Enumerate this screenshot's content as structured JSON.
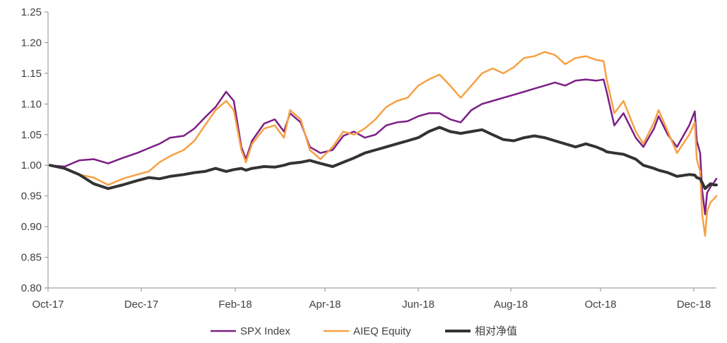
{
  "chart_data": {
    "type": "line",
    "title": "",
    "xlabel": "",
    "ylabel": "",
    "ylim": [
      0.8,
      1.25
    ],
    "y_ticks": [
      "0.80",
      "0.85",
      "0.90",
      "0.95",
      "1.00",
      "1.05",
      "1.10",
      "1.15",
      "1.20",
      "1.25"
    ],
    "x_ticks": [
      "Oct-17",
      "Dec-17",
      "Feb-18",
      "Apr-18",
      "Jun-18",
      "Aug-18",
      "Oct-18",
      "Dec-18"
    ],
    "grid": false,
    "legend_position": "bottom",
    "series": [
      {
        "name": "SPX Index",
        "color": "#7b1f86",
        "width": 2.5,
        "points": [
          [
            "2017-10-18",
            1.0
          ],
          [
            "2017-10-25",
            0.998
          ],
          [
            "2017-11-01",
            1.008
          ],
          [
            "2017-11-08",
            1.01
          ],
          [
            "2017-11-15",
            1.003
          ],
          [
            "2017-11-22",
            1.012
          ],
          [
            "2017-11-29",
            1.02
          ],
          [
            "2017-12-06",
            1.028
          ],
          [
            "2017-12-13",
            1.035
          ],
          [
            "2017-12-20",
            1.045
          ],
          [
            "2017-12-29",
            1.048
          ],
          [
            "2018-01-05",
            1.06
          ],
          [
            "2018-01-12",
            1.078
          ],
          [
            "2018-01-19",
            1.095
          ],
          [
            "2018-01-26",
            1.12
          ],
          [
            "2018-01-31",
            1.105
          ],
          [
            "2018-02-05",
            1.03
          ],
          [
            "2018-02-08",
            1.01
          ],
          [
            "2018-02-12",
            1.04
          ],
          [
            "2018-02-20",
            1.068
          ],
          [
            "2018-02-27",
            1.075
          ],
          [
            "2018-03-05",
            1.055
          ],
          [
            "2018-03-09",
            1.085
          ],
          [
            "2018-03-16",
            1.07
          ],
          [
            "2018-03-22",
            1.03
          ],
          [
            "2018-03-29",
            1.02
          ],
          [
            "2018-04-06",
            1.025
          ],
          [
            "2018-04-13",
            1.048
          ],
          [
            "2018-04-20",
            1.055
          ],
          [
            "2018-04-27",
            1.045
          ],
          [
            "2018-05-04",
            1.05
          ],
          [
            "2018-05-11",
            1.065
          ],
          [
            "2018-05-18",
            1.07
          ],
          [
            "2018-05-25",
            1.072
          ],
          [
            "2018-06-01",
            1.08
          ],
          [
            "2018-06-08",
            1.085
          ],
          [
            "2018-06-15",
            1.085
          ],
          [
            "2018-06-22",
            1.075
          ],
          [
            "2018-06-29",
            1.07
          ],
          [
            "2018-07-06",
            1.09
          ],
          [
            "2018-07-13",
            1.1
          ],
          [
            "2018-07-20",
            1.105
          ],
          [
            "2018-07-27",
            1.11
          ],
          [
            "2018-08-03",
            1.115
          ],
          [
            "2018-08-10",
            1.12
          ],
          [
            "2018-08-17",
            1.125
          ],
          [
            "2018-08-24",
            1.13
          ],
          [
            "2018-08-31",
            1.135
          ],
          [
            "2018-09-07",
            1.13
          ],
          [
            "2018-09-14",
            1.138
          ],
          [
            "2018-09-21",
            1.14
          ],
          [
            "2018-09-28",
            1.138
          ],
          [
            "2018-10-03",
            1.14
          ],
          [
            "2018-10-05",
            1.12
          ],
          [
            "2018-10-10",
            1.065
          ],
          [
            "2018-10-16",
            1.085
          ],
          [
            "2018-10-24",
            1.045
          ],
          [
            "2018-10-29",
            1.03
          ],
          [
            "2018-11-05",
            1.06
          ],
          [
            "2018-11-08",
            1.08
          ],
          [
            "2018-11-14",
            1.05
          ],
          [
            "2018-11-20",
            1.03
          ],
          [
            "2018-11-28",
            1.065
          ],
          [
            "2018-12-03",
            1.088
          ],
          [
            "2018-12-07",
            1.04
          ],
          [
            "2018-12-14",
            1.02
          ],
          [
            "2018-12-18",
            0.96
          ],
          [
            "2018-12-24",
            0.92
          ],
          [
            "2018-12-28",
            0.955
          ],
          [
            "2019-01-04",
            0.965
          ],
          [
            "2019-01-11",
            0.972
          ],
          [
            "2019-01-16",
            0.978
          ]
        ]
      },
      {
        "name": "AIEQ Equity",
        "color": "#f7a043",
        "width": 2.5,
        "points": [
          [
            "2017-10-18",
            1.0
          ],
          [
            "2017-10-25",
            0.995
          ],
          [
            "2017-11-01",
            0.985
          ],
          [
            "2017-11-08",
            0.98
          ],
          [
            "2017-11-15",
            0.968
          ],
          [
            "2017-11-22",
            0.978
          ],
          [
            "2017-11-29",
            0.985
          ],
          [
            "2017-12-06",
            0.99
          ],
          [
            "2017-12-13",
            1.005
          ],
          [
            "2017-12-20",
            1.015
          ],
          [
            "2017-12-29",
            1.025
          ],
          [
            "2018-01-05",
            1.04
          ],
          [
            "2018-01-12",
            1.065
          ],
          [
            "2018-01-19",
            1.09
          ],
          [
            "2018-01-26",
            1.105
          ],
          [
            "2018-01-31",
            1.09
          ],
          [
            "2018-02-05",
            1.025
          ],
          [
            "2018-02-08",
            1.005
          ],
          [
            "2018-02-12",
            1.035
          ],
          [
            "2018-02-20",
            1.06
          ],
          [
            "2018-02-27",
            1.065
          ],
          [
            "2018-03-05",
            1.045
          ],
          [
            "2018-03-09",
            1.09
          ],
          [
            "2018-03-16",
            1.075
          ],
          [
            "2018-03-22",
            1.025
          ],
          [
            "2018-03-29",
            1.01
          ],
          [
            "2018-04-06",
            1.03
          ],
          [
            "2018-04-13",
            1.055
          ],
          [
            "2018-04-20",
            1.05
          ],
          [
            "2018-04-27",
            1.06
          ],
          [
            "2018-05-04",
            1.075
          ],
          [
            "2018-05-11",
            1.095
          ],
          [
            "2018-05-18",
            1.105
          ],
          [
            "2018-05-25",
            1.11
          ],
          [
            "2018-06-01",
            1.13
          ],
          [
            "2018-06-08",
            1.14
          ],
          [
            "2018-06-15",
            1.148
          ],
          [
            "2018-06-22",
            1.13
          ],
          [
            "2018-06-29",
            1.11
          ],
          [
            "2018-07-06",
            1.13
          ],
          [
            "2018-07-13",
            1.15
          ],
          [
            "2018-07-20",
            1.158
          ],
          [
            "2018-07-27",
            1.15
          ],
          [
            "2018-08-03",
            1.16
          ],
          [
            "2018-08-10",
            1.175
          ],
          [
            "2018-08-17",
            1.178
          ],
          [
            "2018-08-24",
            1.185
          ],
          [
            "2018-08-31",
            1.18
          ],
          [
            "2018-09-07",
            1.165
          ],
          [
            "2018-09-14",
            1.175
          ],
          [
            "2018-09-21",
            1.178
          ],
          [
            "2018-09-28",
            1.172
          ],
          [
            "2018-10-03",
            1.17
          ],
          [
            "2018-10-05",
            1.14
          ],
          [
            "2018-10-10",
            1.085
          ],
          [
            "2018-10-16",
            1.105
          ],
          [
            "2018-10-24",
            1.055
          ],
          [
            "2018-10-29",
            1.035
          ],
          [
            "2018-11-05",
            1.07
          ],
          [
            "2018-11-08",
            1.09
          ],
          [
            "2018-11-14",
            1.055
          ],
          [
            "2018-11-20",
            1.02
          ],
          [
            "2018-11-28",
            1.05
          ],
          [
            "2018-12-03",
            1.07
          ],
          [
            "2018-12-07",
            1.01
          ],
          [
            "2018-12-14",
            0.99
          ],
          [
            "2018-12-18",
            0.92
          ],
          [
            "2018-12-24",
            0.885
          ],
          [
            "2018-12-28",
            0.925
          ],
          [
            "2019-01-04",
            0.94
          ],
          [
            "2019-01-11",
            0.945
          ],
          [
            "2019-01-16",
            0.95
          ]
        ]
      },
      {
        "name": "相对净值",
        "color": "#333333",
        "width": 4,
        "points": [
          [
            "2017-10-18",
            1.0
          ],
          [
            "2017-10-25",
            0.995
          ],
          [
            "2017-11-01",
            0.985
          ],
          [
            "2017-11-08",
            0.97
          ],
          [
            "2017-11-15",
            0.962
          ],
          [
            "2017-11-22",
            0.968
          ],
          [
            "2017-11-29",
            0.975
          ],
          [
            "2017-12-06",
            0.98
          ],
          [
            "2017-12-13",
            0.978
          ],
          [
            "2017-12-20",
            0.982
          ],
          [
            "2017-12-29",
            0.985
          ],
          [
            "2018-01-05",
            0.988
          ],
          [
            "2018-01-12",
            0.99
          ],
          [
            "2018-01-19",
            0.995
          ],
          [
            "2018-01-26",
            0.99
          ],
          [
            "2018-01-31",
            0.993
          ],
          [
            "2018-02-05",
            0.995
          ],
          [
            "2018-02-08",
            0.992
          ],
          [
            "2018-02-12",
            0.995
          ],
          [
            "2018-02-20",
            0.998
          ],
          [
            "2018-02-27",
            0.997
          ],
          [
            "2018-03-05",
            1.0
          ],
          [
            "2018-03-09",
            1.003
          ],
          [
            "2018-03-16",
            1.005
          ],
          [
            "2018-03-22",
            1.008
          ],
          [
            "2018-03-29",
            1.003
          ],
          [
            "2018-04-06",
            0.998
          ],
          [
            "2018-04-13",
            1.005
          ],
          [
            "2018-04-20",
            1.012
          ],
          [
            "2018-04-27",
            1.02
          ],
          [
            "2018-05-04",
            1.025
          ],
          [
            "2018-05-11",
            1.03
          ],
          [
            "2018-05-18",
            1.035
          ],
          [
            "2018-05-25",
            1.04
          ],
          [
            "2018-06-01",
            1.045
          ],
          [
            "2018-06-08",
            1.055
          ],
          [
            "2018-06-15",
            1.062
          ],
          [
            "2018-06-22",
            1.055
          ],
          [
            "2018-06-29",
            1.052
          ],
          [
            "2018-07-06",
            1.055
          ],
          [
            "2018-07-13",
            1.058
          ],
          [
            "2018-07-20",
            1.05
          ],
          [
            "2018-07-27",
            1.042
          ],
          [
            "2018-08-03",
            1.04
          ],
          [
            "2018-08-10",
            1.045
          ],
          [
            "2018-08-17",
            1.048
          ],
          [
            "2018-08-24",
            1.045
          ],
          [
            "2018-08-31",
            1.04
          ],
          [
            "2018-09-07",
            1.035
          ],
          [
            "2018-09-14",
            1.03
          ],
          [
            "2018-09-21",
            1.035
          ],
          [
            "2018-09-28",
            1.03
          ],
          [
            "2018-10-03",
            1.025
          ],
          [
            "2018-10-05",
            1.022
          ],
          [
            "2018-10-10",
            1.02
          ],
          [
            "2018-10-16",
            1.018
          ],
          [
            "2018-10-24",
            1.01
          ],
          [
            "2018-10-29",
            1.0
          ],
          [
            "2018-11-05",
            0.995
          ],
          [
            "2018-11-08",
            0.992
          ],
          [
            "2018-11-14",
            0.988
          ],
          [
            "2018-11-20",
            0.982
          ],
          [
            "2018-11-28",
            0.985
          ],
          [
            "2018-12-03",
            0.984
          ],
          [
            "2018-12-07",
            0.98
          ],
          [
            "2018-12-14",
            0.978
          ],
          [
            "2018-12-18",
            0.972
          ],
          [
            "2018-12-24",
            0.962
          ],
          [
            "2018-12-28",
            0.965
          ],
          [
            "2019-01-04",
            0.97
          ],
          [
            "2019-01-11",
            0.968
          ],
          [
            "2019-01-16",
            0.968
          ]
        ]
      }
    ]
  }
}
